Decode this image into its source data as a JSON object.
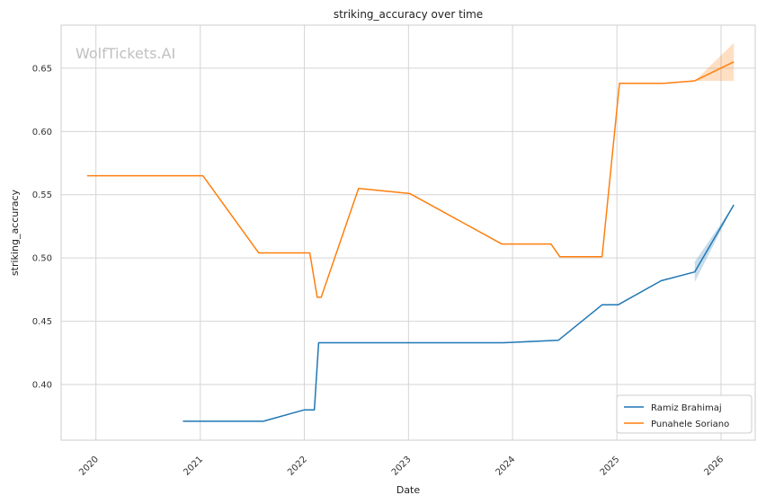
{
  "chart_data": {
    "type": "line",
    "title": "striking_accuracy over time",
    "xlabel": "Date",
    "ylabel": "striking_accuracy",
    "watermark": "WolfTickets.AI",
    "xlim": [
      "2019-09-01",
      "2026-05-01"
    ],
    "ylim": [
      0.356,
      0.684
    ],
    "x_ticks": [
      "2020",
      "2021",
      "2022",
      "2023",
      "2024",
      "2025",
      "2026"
    ],
    "y_ticks": [
      "0.40",
      "0.45",
      "0.50",
      "0.55",
      "0.60",
      "0.65"
    ],
    "grid": true,
    "legend_position": "bottom-right",
    "series": [
      {
        "name": "Ramiz Brahimaj",
        "color": "#1f77b4",
        "points": [
          {
            "x": "2020-11-01",
            "y": 0.371
          },
          {
            "x": "2021-08-10",
            "y": 0.371
          },
          {
            "x": "2022-01-01",
            "y": 0.38
          },
          {
            "x": "2022-02-05",
            "y": 0.38
          },
          {
            "x": "2022-02-20",
            "y": 0.433
          },
          {
            "x": "2023-11-30",
            "y": 0.433
          },
          {
            "x": "2024-06-10",
            "y": 0.435
          },
          {
            "x": "2024-11-10",
            "y": 0.463
          },
          {
            "x": "2025-01-05",
            "y": 0.463
          },
          {
            "x": "2025-06-05",
            "y": 0.482
          },
          {
            "x": "2025-10-01",
            "y": 0.489
          },
          {
            "x": "2026-02-15",
            "y": 0.542
          }
        ],
        "band": [
          {
            "x": "2025-10-01",
            "lo": 0.481,
            "hi": 0.497
          },
          {
            "x": "2026-02-15",
            "lo": 0.542,
            "hi": 0.542
          }
        ]
      },
      {
        "name": "Punahele Soriano",
        "color": "#ff7f0e",
        "points": [
          {
            "x": "2019-12-01",
            "y": 0.565
          },
          {
            "x": "2021-01-10",
            "y": 0.565
          },
          {
            "x": "2021-07-25",
            "y": 0.504
          },
          {
            "x": "2022-01-20",
            "y": 0.504
          },
          {
            "x": "2022-02-15",
            "y": 0.469
          },
          {
            "x": "2022-03-01",
            "y": 0.469
          },
          {
            "x": "2022-07-10",
            "y": 0.555
          },
          {
            "x": "2023-01-05",
            "y": 0.551
          },
          {
            "x": "2023-11-25",
            "y": 0.511
          },
          {
            "x": "2024-05-15",
            "y": 0.511
          },
          {
            "x": "2024-06-15",
            "y": 0.501
          },
          {
            "x": "2024-11-10",
            "y": 0.501
          },
          {
            "x": "2025-01-10",
            "y": 0.638
          },
          {
            "x": "2025-06-15",
            "y": 0.638
          },
          {
            "x": "2025-10-01",
            "y": 0.64
          },
          {
            "x": "2026-02-15",
            "y": 0.655
          }
        ],
        "band": [
          {
            "x": "2025-10-01",
            "lo": 0.64,
            "hi": 0.64
          },
          {
            "x": "2026-02-15",
            "lo": 0.64,
            "hi": 0.67
          }
        ]
      }
    ]
  }
}
